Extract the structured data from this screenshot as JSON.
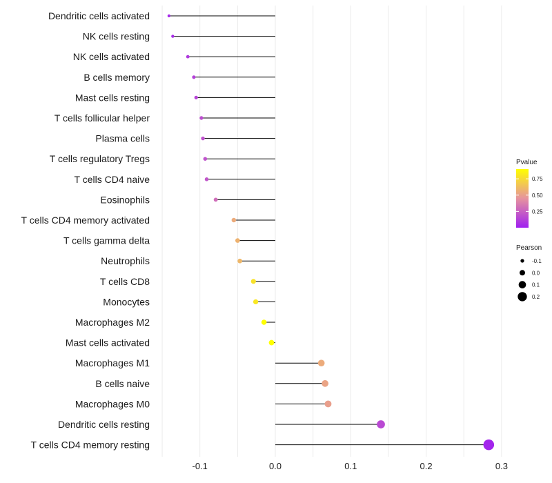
{
  "chart_data": {
    "type": "lollipop",
    "title": "",
    "xlabel": "",
    "ylabel": "",
    "xlim": [
      -0.15,
      0.31
    ],
    "x_ticks": [
      -0.1,
      0.0,
      0.1,
      0.2,
      0.3
    ],
    "x_tick_labels": [
      "-0.1",
      "0.0",
      "0.1",
      "0.2",
      "0.3"
    ],
    "baseline": 0,
    "categories": [
      "Dendritic cells activated",
      "NK cells resting",
      "NK cells activated",
      "B cells memory",
      "Mast cells resting",
      "T cells follicular helper",
      "Plasma cells",
      "T cells regulatory  Tregs ",
      "T cells CD4 naive",
      "Eosinophils",
      "T cells CD4 memory activated",
      "T cells gamma delta",
      "Neutrophils",
      "T cells CD8",
      "Monocytes",
      "Macrophages M2",
      "Mast cells activated",
      "Macrophages M1",
      "B cells naive",
      "Macrophages M0",
      "Dendritic cells resting",
      "T cells CD4 memory resting"
    ],
    "values": [
      -0.141,
      -0.136,
      -0.116,
      -0.108,
      -0.105,
      -0.098,
      -0.096,
      -0.093,
      -0.091,
      -0.079,
      -0.055,
      -0.05,
      -0.047,
      -0.029,
      -0.026,
      -0.015,
      -0.005,
      0.061,
      0.066,
      0.07,
      0.14,
      0.283
    ],
    "pvalues": [
      0.04,
      0.05,
      0.1,
      0.13,
      0.14,
      0.18,
      0.19,
      0.2,
      0.21,
      0.3,
      0.55,
      0.58,
      0.6,
      0.78,
      0.8,
      0.9,
      0.97,
      0.55,
      0.52,
      0.5,
      0.16,
      0.02
    ],
    "legend": {
      "color": {
        "title": "Pvalue",
        "ticks": [
          0.25,
          0.5,
          0.75
        ],
        "tick_labels": [
          "0.25",
          "0.50",
          "0.75"
        ],
        "range": [
          0.0,
          0.9
        ],
        "low_color": "#a020f0",
        "mid_color": "#e6939e",
        "high_color": "#ffff00"
      },
      "size": {
        "title": "Pearson",
        "values": [
          -0.1,
          0.0,
          0.1,
          0.2
        ],
        "labels": [
          "-0.1",
          "0.0",
          "0.1",
          "0.2"
        ]
      }
    },
    "grid": true
  }
}
